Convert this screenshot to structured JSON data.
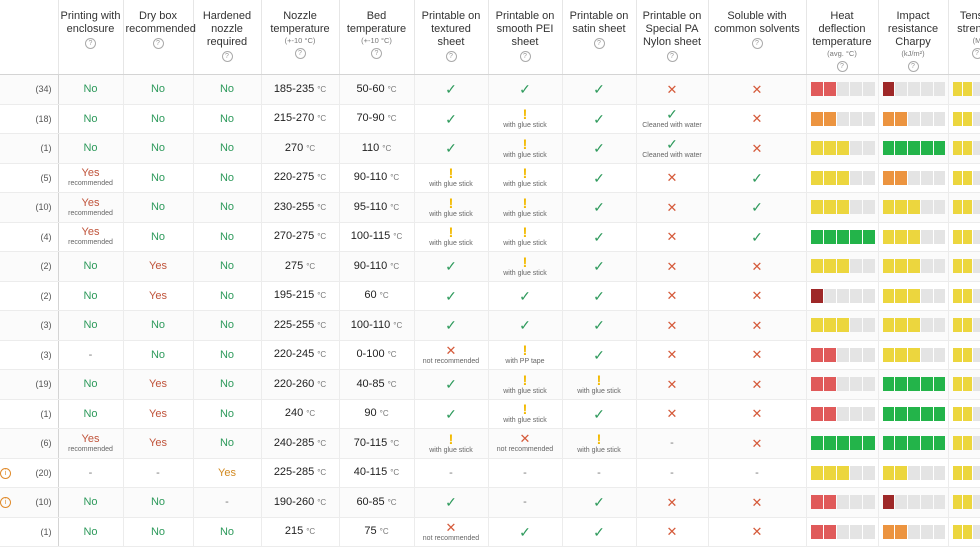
{
  "colors": {
    "dark_red": "#9e2828",
    "red": "#e05a5a",
    "orange": "#ec9440",
    "yellow": "#ecd63e",
    "green": "#23b44a",
    "empty": "#e4e4e4"
  },
  "headers": [
    {
      "name": "count",
      "label": "",
      "sub": ""
    },
    {
      "name": "enclosure",
      "label": "Printing with enclosure",
      "sub": ""
    },
    {
      "name": "drybox",
      "label": "Dry box recommended",
      "sub": ""
    },
    {
      "name": "nozzle",
      "label": "Hardened nozzle required",
      "sub": ""
    },
    {
      "name": "nozzle-temp",
      "label": "Nozzle temperature",
      "sub": "(+-10 °C)"
    },
    {
      "name": "bed-temp",
      "label": "Bed temperature",
      "sub": "(+-10 °C)"
    },
    {
      "name": "textured",
      "label": "Printable on textured sheet",
      "sub": ""
    },
    {
      "name": "pei",
      "label": "Printable on smooth PEI sheet",
      "sub": ""
    },
    {
      "name": "satin",
      "label": "Printable on satin sheet",
      "sub": ""
    },
    {
      "name": "nylon",
      "label": "Printable on Special PA Nylon sheet",
      "sub": ""
    },
    {
      "name": "soluble",
      "label": "Soluble with common solvents",
      "sub": ""
    },
    {
      "name": "hdt",
      "label": "Heat deflection temperature",
      "sub": "(avg. °C)"
    },
    {
      "name": "impact",
      "label": "Impact resistance Charpy",
      "sub": "(kJ/m²)"
    },
    {
      "name": "tensile",
      "label": "Tensile strength",
      "sub": "(M"
    }
  ],
  "help_icon": "?",
  "unit_c": "°C",
  "rows": [
    {
      "count": "(34)",
      "enc": {
        "t": "No",
        "c": "g"
      },
      "dry": {
        "t": "No",
        "c": "g"
      },
      "noz": {
        "t": "No",
        "c": "g"
      },
      "nt": "185-235",
      "bt": "50-60",
      "tex": {
        "s": "check"
      },
      "pei": {
        "s": "check"
      },
      "sat": {
        "s": "check"
      },
      "nyl": {
        "s": "cross"
      },
      "sol": {
        "s": "cross"
      },
      "hdt": {
        "n": 2,
        "c": "red"
      },
      "imp": {
        "n": 1,
        "c": "dark_red"
      },
      "ten": {
        "n": 2,
        "c": "yellow"
      }
    },
    {
      "count": "(18)",
      "enc": {
        "t": "No",
        "c": "g"
      },
      "dry": {
        "t": "No",
        "c": "g"
      },
      "noz": {
        "t": "No",
        "c": "g"
      },
      "nt": "215-270",
      "bt": "70-90",
      "tex": {
        "s": "check"
      },
      "pei": {
        "s": "warn",
        "n": "with glue stick"
      },
      "sat": {
        "s": "check"
      },
      "nyl": {
        "s": "check",
        "n": "Cleaned with water"
      },
      "sol": {
        "s": "cross"
      },
      "hdt": {
        "n": 2,
        "c": "orange"
      },
      "imp": {
        "n": 2,
        "c": "orange"
      },
      "ten": {
        "n": 2,
        "c": "yellow"
      }
    },
    {
      "count": "(1)",
      "enc": {
        "t": "No",
        "c": "g"
      },
      "dry": {
        "t": "No",
        "c": "g"
      },
      "noz": {
        "t": "No",
        "c": "g"
      },
      "nt": "270",
      "bt": "110",
      "tex": {
        "s": "check"
      },
      "pei": {
        "s": "warn",
        "n": "with glue stick"
      },
      "sat": {
        "s": "check"
      },
      "nyl": {
        "s": "check",
        "n": "Cleaned with water"
      },
      "sol": {
        "s": "cross"
      },
      "hdt": {
        "n": 3,
        "c": "yellow"
      },
      "imp": {
        "n": 5,
        "c": "green"
      },
      "ten": {
        "n": 2,
        "c": "yellow"
      }
    },
    {
      "count": "(5)",
      "enc": {
        "t": "Yes",
        "c": "r",
        "n": "recommended"
      },
      "dry": {
        "t": "No",
        "c": "g"
      },
      "noz": {
        "t": "No",
        "c": "g"
      },
      "nt": "220-275",
      "bt": "90-110",
      "tex": {
        "s": "warn",
        "n": "with glue stick"
      },
      "pei": {
        "s": "warn",
        "n": "with glue stick"
      },
      "sat": {
        "s": "check"
      },
      "nyl": {
        "s": "cross"
      },
      "sol": {
        "s": "check"
      },
      "hdt": {
        "n": 3,
        "c": "yellow"
      },
      "imp": {
        "n": 2,
        "c": "orange"
      },
      "ten": {
        "n": 2,
        "c": "yellow"
      }
    },
    {
      "count": "(10)",
      "enc": {
        "t": "Yes",
        "c": "r",
        "n": "recommended"
      },
      "dry": {
        "t": "No",
        "c": "g"
      },
      "noz": {
        "t": "No",
        "c": "g"
      },
      "nt": "230-255",
      "bt": "95-110",
      "tex": {
        "s": "warn",
        "n": "with glue stick"
      },
      "pei": {
        "s": "warn",
        "n": "with glue stick"
      },
      "sat": {
        "s": "check"
      },
      "nyl": {
        "s": "cross"
      },
      "sol": {
        "s": "check"
      },
      "hdt": {
        "n": 3,
        "c": "yellow"
      },
      "imp": {
        "n": 3,
        "c": "yellow"
      },
      "ten": {
        "n": 2,
        "c": "yellow"
      }
    },
    {
      "count": "(4)",
      "enc": {
        "t": "Yes",
        "c": "r",
        "n": "recommended"
      },
      "dry": {
        "t": "No",
        "c": "g"
      },
      "noz": {
        "t": "No",
        "c": "g"
      },
      "nt": "270-275",
      "bt": "100-115",
      "tex": {
        "s": "warn",
        "n": "with glue stick"
      },
      "pei": {
        "s": "warn",
        "n": "with glue stick"
      },
      "sat": {
        "s": "check"
      },
      "nyl": {
        "s": "cross"
      },
      "sol": {
        "s": "check"
      },
      "hdt": {
        "n": 5,
        "c": "green"
      },
      "imp": {
        "n": 3,
        "c": "yellow"
      },
      "ten": {
        "n": 2,
        "c": "yellow"
      }
    },
    {
      "count": "(2)",
      "enc": {
        "t": "No",
        "c": "g"
      },
      "dry": {
        "t": "Yes",
        "c": "r"
      },
      "noz": {
        "t": "No",
        "c": "g"
      },
      "nt": "275",
      "bt": "90-110",
      "tex": {
        "s": "check"
      },
      "pei": {
        "s": "warn",
        "n": "with glue stick"
      },
      "sat": {
        "s": "check"
      },
      "nyl": {
        "s": "cross"
      },
      "sol": {
        "s": "cross"
      },
      "hdt": {
        "n": 3,
        "c": "yellow"
      },
      "imp": {
        "n": 3,
        "c": "yellow"
      },
      "ten": {
        "n": 2,
        "c": "yellow"
      }
    },
    {
      "count": "(2)",
      "enc": {
        "t": "No",
        "c": "g"
      },
      "dry": {
        "t": "Yes",
        "c": "r"
      },
      "noz": {
        "t": "No",
        "c": "g"
      },
      "nt": "195-215",
      "bt": "60",
      "tex": {
        "s": "check"
      },
      "pei": {
        "s": "check"
      },
      "sat": {
        "s": "check"
      },
      "nyl": {
        "s": "cross"
      },
      "sol": {
        "s": "cross"
      },
      "hdt": {
        "n": 1,
        "c": "dark_red"
      },
      "imp": {
        "n": 3,
        "c": "yellow"
      },
      "ten": {
        "n": 2,
        "c": "yellow"
      }
    },
    {
      "count": "(3)",
      "enc": {
        "t": "No",
        "c": "g"
      },
      "dry": {
        "t": "No",
        "c": "g"
      },
      "noz": {
        "t": "No",
        "c": "g"
      },
      "nt": "225-255",
      "bt": "100-110",
      "tex": {
        "s": "check"
      },
      "pei": {
        "s": "check"
      },
      "sat": {
        "s": "check"
      },
      "nyl": {
        "s": "cross"
      },
      "sol": {
        "s": "cross"
      },
      "hdt": {
        "n": 3,
        "c": "yellow"
      },
      "imp": {
        "n": 3,
        "c": "yellow"
      },
      "ten": {
        "n": 2,
        "c": "yellow"
      }
    },
    {
      "count": "(3)",
      "enc": {
        "t": "-",
        "c": "d"
      },
      "dry": {
        "t": "No",
        "c": "g"
      },
      "noz": {
        "t": "No",
        "c": "g"
      },
      "nt": "220-245",
      "bt": "0-100",
      "tex": {
        "s": "cross",
        "n": "not recommended"
      },
      "pei": {
        "s": "warn",
        "n": "with PP tape"
      },
      "sat": {
        "s": "check"
      },
      "nyl": {
        "s": "cross"
      },
      "sol": {
        "s": "cross"
      },
      "hdt": {
        "n": 2,
        "c": "red"
      },
      "imp": {
        "n": 3,
        "c": "yellow"
      },
      "ten": {
        "n": 2,
        "c": "yellow"
      }
    },
    {
      "count": "(19)",
      "enc": {
        "t": "No",
        "c": "g"
      },
      "dry": {
        "t": "Yes",
        "c": "r"
      },
      "noz": {
        "t": "No",
        "c": "g"
      },
      "nt": "220-260",
      "bt": "40-85",
      "tex": {
        "s": "check"
      },
      "pei": {
        "s": "warn",
        "n": "with glue stick"
      },
      "sat": {
        "s": "warn",
        "n": "with glue stick"
      },
      "nyl": {
        "s": "cross"
      },
      "sol": {
        "s": "cross"
      },
      "hdt": {
        "n": 2,
        "c": "red"
      },
      "imp": {
        "n": 5,
        "c": "green"
      },
      "ten": {
        "n": 2,
        "c": "yellow"
      }
    },
    {
      "count": "(1)",
      "enc": {
        "t": "No",
        "c": "g"
      },
      "dry": {
        "t": "Yes",
        "c": "r"
      },
      "noz": {
        "t": "No",
        "c": "g"
      },
      "nt": "240",
      "bt": "90",
      "tex": {
        "s": "check"
      },
      "pei": {
        "s": "warn",
        "n": "with glue stick"
      },
      "sat": {
        "s": "check"
      },
      "nyl": {
        "s": "cross"
      },
      "sol": {
        "s": "cross"
      },
      "hdt": {
        "n": 2,
        "c": "red"
      },
      "imp": {
        "n": 5,
        "c": "green"
      },
      "ten": {
        "n": 2,
        "c": "yellow"
      }
    },
    {
      "count": "(6)",
      "enc": {
        "t": "Yes",
        "c": "r",
        "n": "recommended"
      },
      "dry": {
        "t": "Yes",
        "c": "r"
      },
      "noz": {
        "t": "No",
        "c": "g"
      },
      "nt": "240-285",
      "bt": "70-115",
      "tex": {
        "s": "warn",
        "n": "with glue stick"
      },
      "pei": {
        "s": "cross",
        "n": "not recommended"
      },
      "sat": {
        "s": "warn",
        "n": "with glue stick"
      },
      "nyl": {
        "s": "dash"
      },
      "sol": {
        "s": "cross"
      },
      "hdt": {
        "n": 5,
        "c": "green"
      },
      "imp": {
        "n": 5,
        "c": "green"
      },
      "ten": {
        "n": 2,
        "c": "yellow"
      }
    },
    {
      "count": "(20)",
      "info": true,
      "enc": {
        "t": "-",
        "c": "d"
      },
      "dry": {
        "t": "-",
        "c": "d"
      },
      "noz": {
        "t": "Yes",
        "c": "o"
      },
      "nt": "225-285",
      "bt": "40-115",
      "tex": {
        "s": "dash"
      },
      "pei": {
        "s": "dash"
      },
      "sat": {
        "s": "dash"
      },
      "nyl": {
        "s": "dash"
      },
      "sol": {
        "s": "dash"
      },
      "hdt": {
        "n": 3,
        "c": "yellow"
      },
      "imp": {
        "n": 2,
        "c": "yellow"
      },
      "ten": {
        "n": 2,
        "c": "yellow"
      }
    },
    {
      "count": "(10)",
      "info": true,
      "enc": {
        "t": "No",
        "c": "g"
      },
      "dry": {
        "t": "No",
        "c": "g"
      },
      "noz": {
        "t": "-",
        "c": "d"
      },
      "nt": "190-260",
      "bt": "60-85",
      "tex": {
        "s": "check"
      },
      "pei": {
        "s": "dash"
      },
      "sat": {
        "s": "check"
      },
      "nyl": {
        "s": "cross"
      },
      "sol": {
        "s": "cross"
      },
      "hdt": {
        "n": 2,
        "c": "red"
      },
      "imp": {
        "n": 1,
        "c": "dark_red"
      },
      "ten": {
        "n": 2,
        "c": "yellow"
      }
    },
    {
      "count": "(1)",
      "enc": {
        "t": "No",
        "c": "g"
      },
      "dry": {
        "t": "No",
        "c": "g"
      },
      "noz": {
        "t": "No",
        "c": "g"
      },
      "nt": "215",
      "bt": "75",
      "tex": {
        "s": "cross",
        "n": "not recommended"
      },
      "pei": {
        "s": "check"
      },
      "sat": {
        "s": "check"
      },
      "nyl": {
        "s": "cross"
      },
      "sol": {
        "s": "cross"
      },
      "hdt": {
        "n": 2,
        "c": "red"
      },
      "imp": {
        "n": 2,
        "c": "orange"
      },
      "ten": {
        "n": 2,
        "c": "yellow"
      }
    }
  ]
}
